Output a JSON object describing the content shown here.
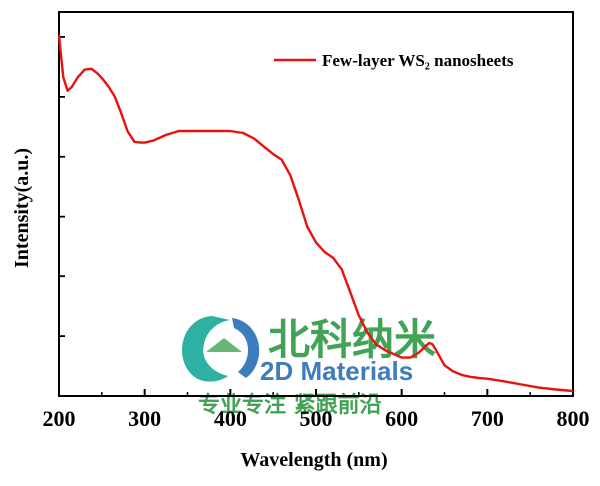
{
  "colors": {
    "series": "#e8120f",
    "axis": "#000000",
    "watermark_green": "#2e9a45",
    "watermark_blue": "#2a6fb6",
    "watermark_teal": "#18a99a"
  },
  "watermark": {
    "brand_cn": "北科纳米",
    "brand_en": "2D Materials",
    "slogan": "专业专注 紧跟前沿",
    "logo_icon": "bk-nano-logo-icon"
  },
  "chart_data": {
    "type": "line",
    "xlabel": "Wavelength (nm)",
    "ylabel": "Intensity(a.u.)",
    "xlim": [
      200,
      800
    ],
    "ylim": [
      0,
      1
    ],
    "xticks": [
      200,
      300,
      400,
      500,
      600,
      700,
      800
    ],
    "xtick_labels": [
      "200",
      "300",
      "400",
      "500",
      "600",
      "700",
      "800"
    ],
    "y_minor_ticks": [
      0.156,
      0.312,
      0.467,
      0.623,
      0.779,
      0.935
    ],
    "legend_position": "top-right",
    "grid": false,
    "series": [
      {
        "name": "Few-layer WS₂ nanosheets",
        "x": [
          200,
          202,
          205,
          210,
          215,
          222,
          230,
          238,
          245,
          252,
          258,
          265,
          272,
          280,
          288,
          295,
          300,
          310,
          325,
          340,
          355,
          370,
          385,
          400,
          415,
          428,
          440,
          450,
          460,
          470,
          480,
          490,
          500,
          510,
          520,
          530,
          540,
          550,
          560,
          570,
          580,
          590,
          600,
          610,
          620,
          628,
          632,
          636,
          640,
          645,
          650,
          660,
          670,
          680,
          690,
          700,
          720,
          740,
          760,
          780,
          800
        ],
        "y": [
          0.94,
          0.895,
          0.83,
          0.795,
          0.805,
          0.83,
          0.85,
          0.852,
          0.84,
          0.823,
          0.805,
          0.78,
          0.74,
          0.69,
          0.662,
          0.66,
          0.66,
          0.665,
          0.68,
          0.69,
          0.69,
          0.69,
          0.69,
          0.69,
          0.685,
          0.67,
          0.648,
          0.63,
          0.615,
          0.575,
          0.51,
          0.44,
          0.4,
          0.375,
          0.36,
          0.33,
          0.27,
          0.21,
          0.165,
          0.135,
          0.12,
          0.11,
          0.1,
          0.1,
          0.113,
          0.13,
          0.138,
          0.135,
          0.12,
          0.1,
          0.08,
          0.064,
          0.055,
          0.05,
          0.047,
          0.045,
          0.038,
          0.03,
          0.022,
          0.017,
          0.013
        ]
      }
    ]
  }
}
